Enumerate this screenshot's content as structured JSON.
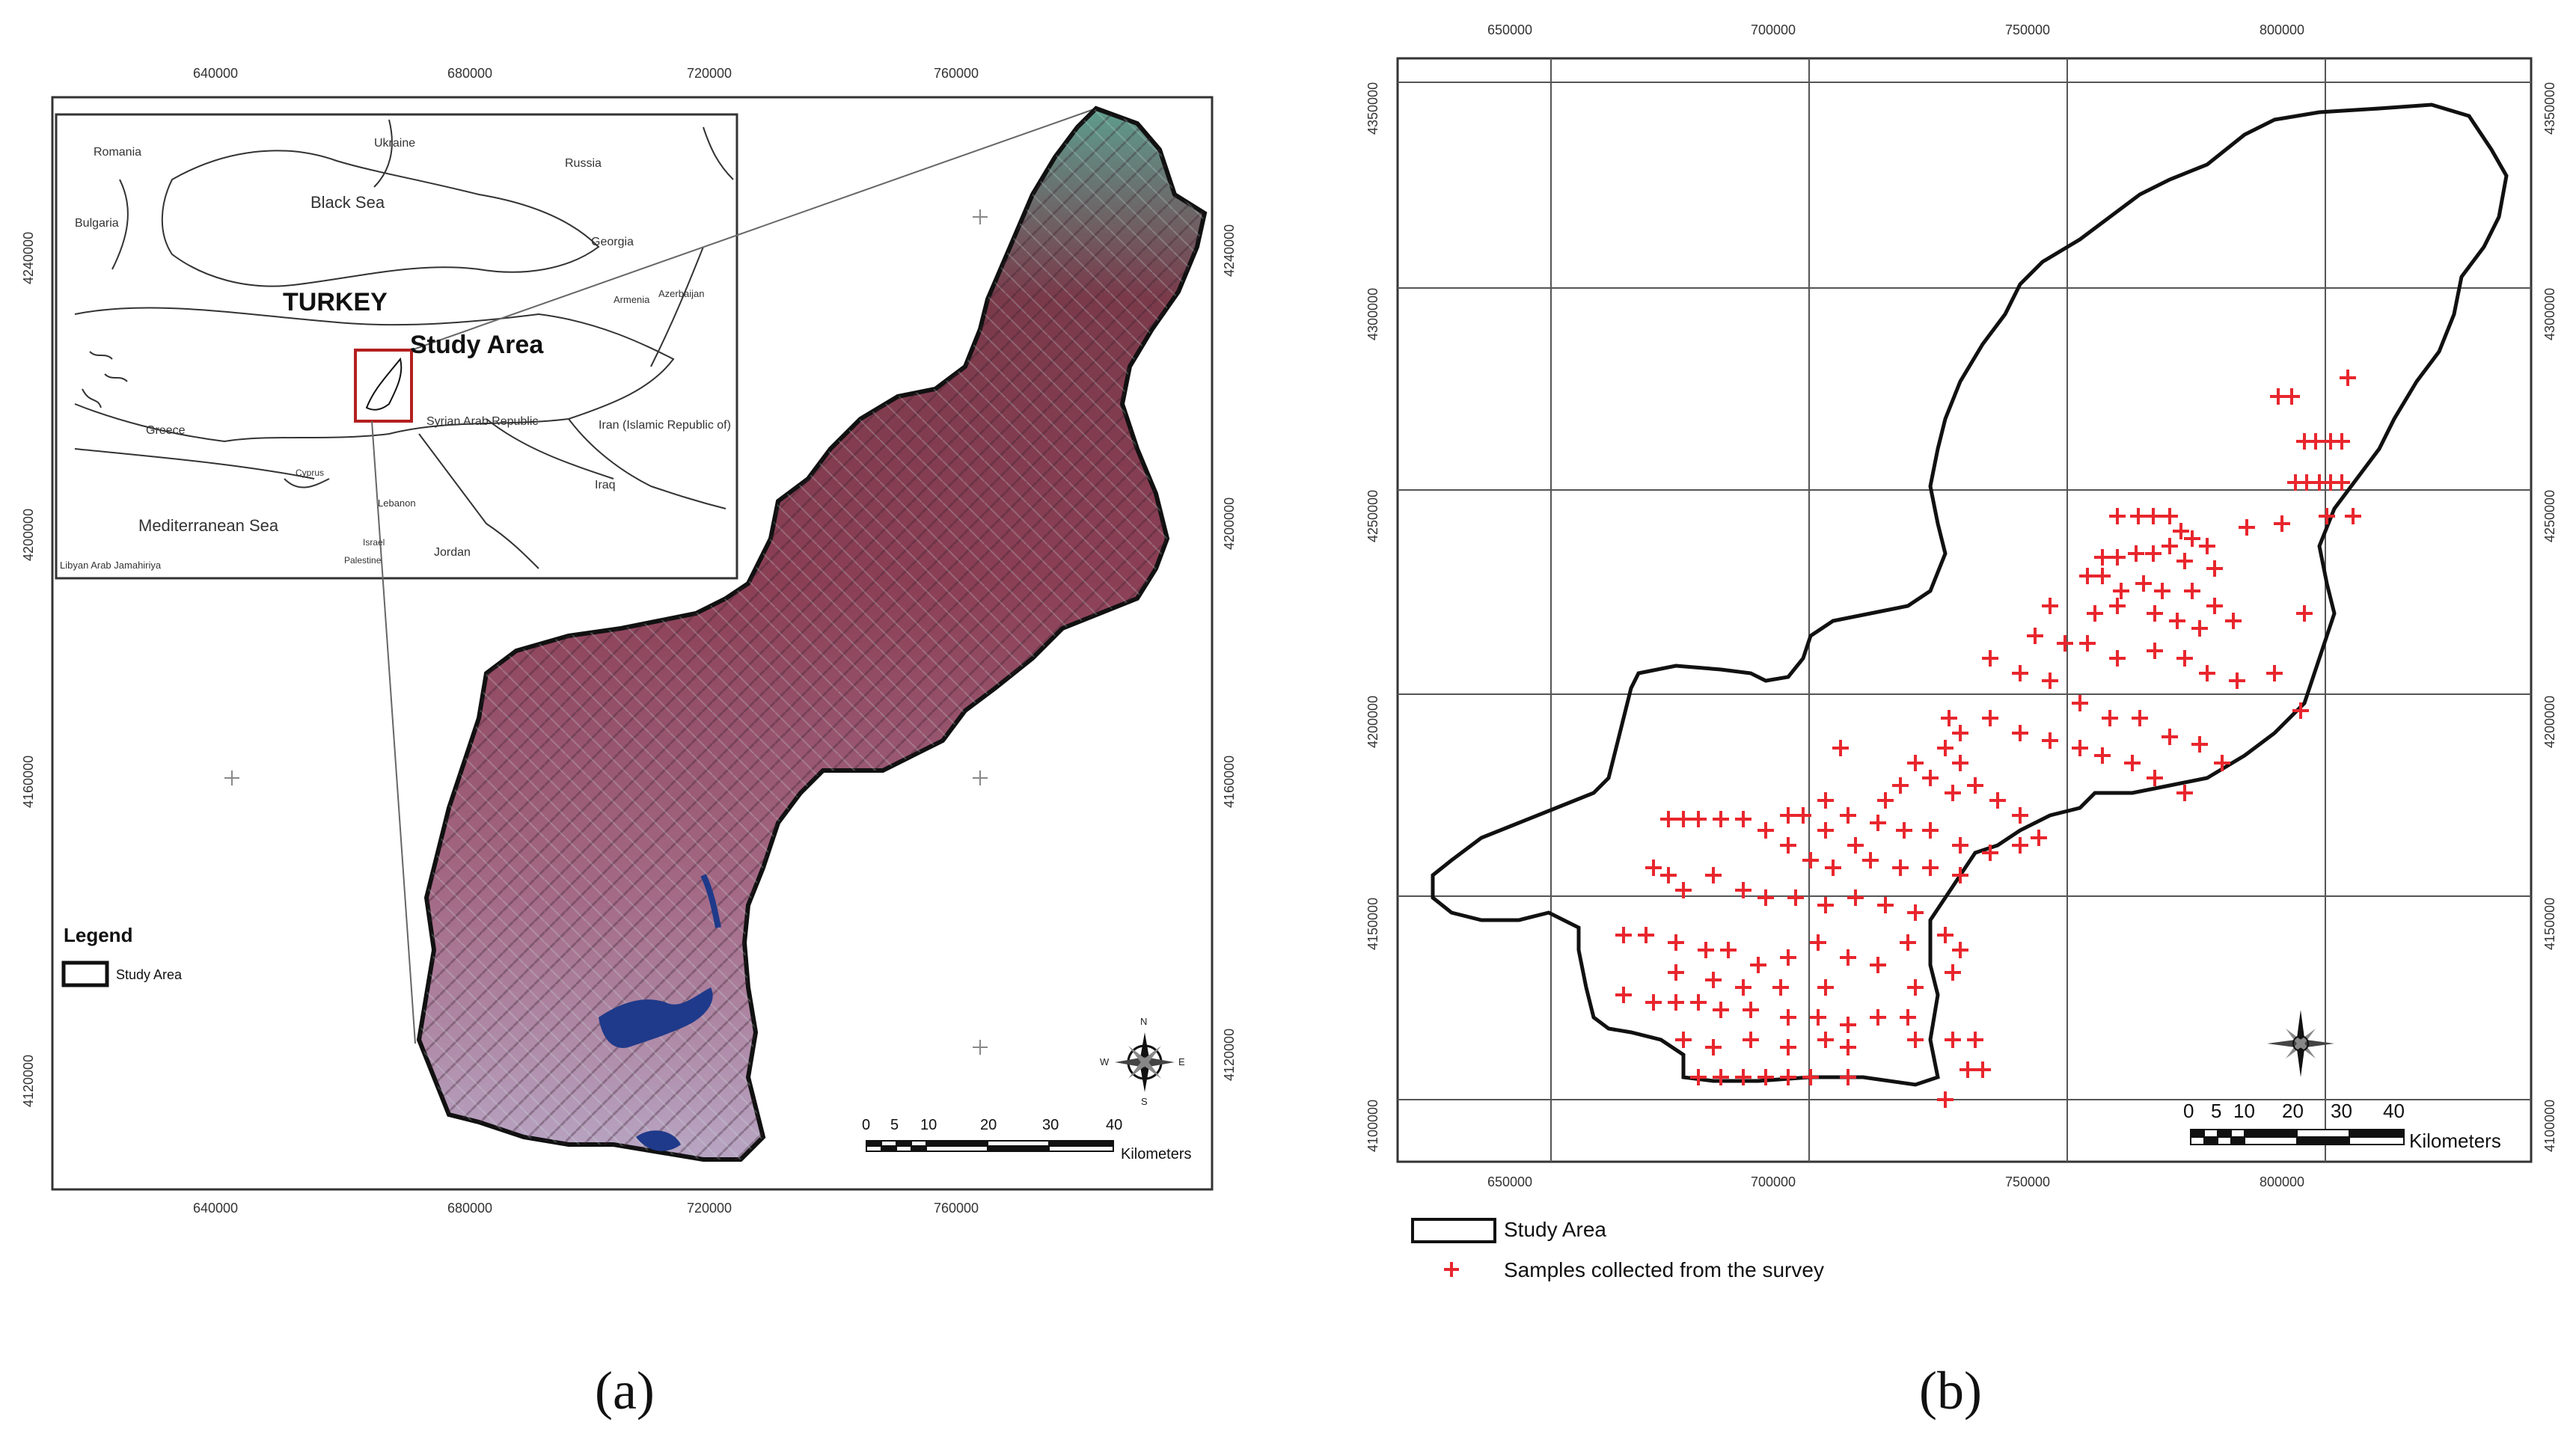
{
  "panels": {
    "a": {
      "caption": "(a)",
      "x_ticks": [
        "640000",
        "680000",
        "720000",
        "760000"
      ],
      "y_ticks": [
        "4240000",
        "4200000",
        "4160000",
        "4120000"
      ],
      "inset": {
        "countries": [
          "Romania",
          "Ukraine",
          "Russia",
          "Bulgaria",
          "Georgia",
          "Armenia",
          "Azerbaijan",
          "Greece",
          "Syrian Arab Republic",
          "Lebanon",
          "Iran (Islamic Republic of)",
          "Iraq",
          "Israel",
          "Palestine",
          "Jordan",
          "Libyan Arab Jamahiriya",
          "Cyprus"
        ],
        "seas": [
          "Black Sea",
          "Mediterranean Sea"
        ],
        "turkey_label": "TURKEY",
        "study_area_label": "Study Area"
      },
      "legend": {
        "title": "Legend",
        "item": "Study Area"
      },
      "scale": {
        "ticks": [
          "0",
          "5",
          "10",
          "20",
          "30",
          "40"
        ],
        "unit": "Kilometers"
      },
      "compass": {
        "n": "N",
        "s": "S",
        "e": "E",
        "w": "W"
      }
    },
    "b": {
      "caption": "(b)",
      "x_ticks": [
        "650000",
        "700000",
        "750000",
        "800000"
      ],
      "y_ticks": [
        "4350000",
        "4300000",
        "4250000",
        "4200000",
        "4150000",
        "4100000"
      ],
      "legend": {
        "study_area": "Study Area",
        "samples": "Samples collected from the survey"
      },
      "scale": {
        "ticks": [
          "0",
          "5",
          "10",
          "20",
          "30",
          "40"
        ],
        "unit": "Kilometers"
      },
      "sample_color": "#e8262d"
    }
  }
}
